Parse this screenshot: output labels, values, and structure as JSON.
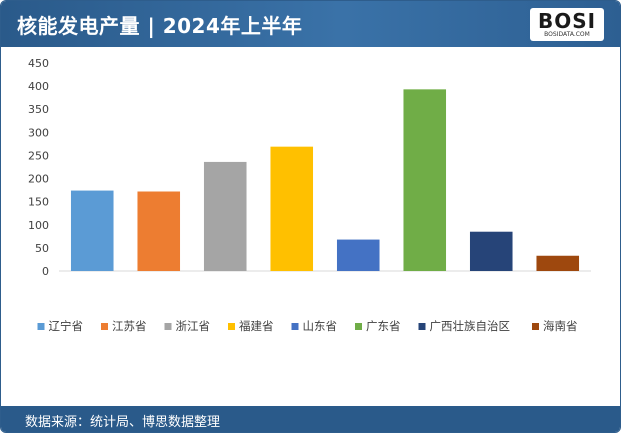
{
  "header": {
    "title": "核能发电产量 | 2024年上半年"
  },
  "logo": {
    "text": "BOSI",
    "subtext": "BOSIDATA.COM"
  },
  "footer": {
    "source": "数据来源：统计局、博思数据整理"
  },
  "chart_data": {
    "type": "bar",
    "title": "",
    "xlabel": "",
    "ylabel": "",
    "ylim": [
      0,
      450
    ],
    "yticks": [
      0,
      50,
      100,
      150,
      200,
      250,
      300,
      350,
      400,
      450
    ],
    "grid": false,
    "legend_position": "bottom",
    "categories": [
      "辽宁省",
      "江苏省",
      "浙江省",
      "福建省",
      "山东省",
      "广东省",
      "广西壮族自治区",
      "海南省"
    ],
    "values": [
      174,
      172,
      236,
      269,
      68,
      393,
      85,
      33
    ],
    "colors": [
      "#5b9bd5",
      "#ed7d31",
      "#a5a5a5",
      "#ffc000",
      "#4472c4",
      "#70ad47",
      "#264478",
      "#9e480e"
    ]
  }
}
